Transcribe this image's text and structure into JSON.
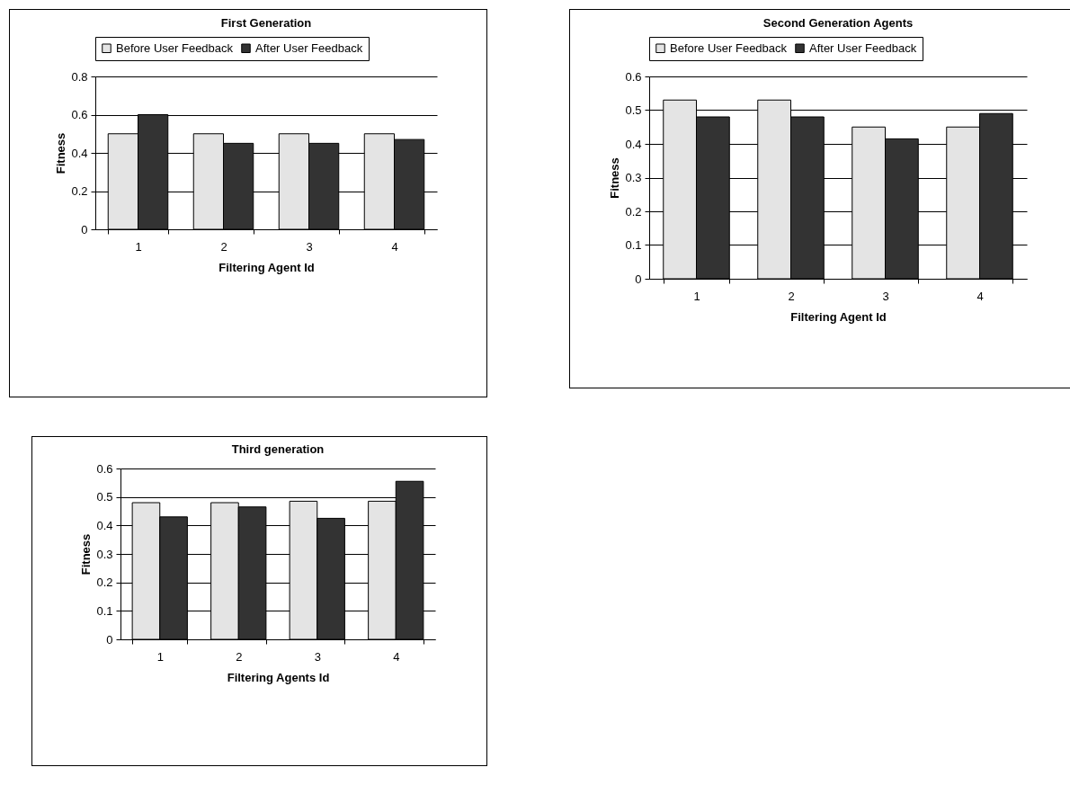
{
  "chart_data": [
    {
      "type": "bar",
      "title": "First Generation",
      "xlabel": "Filtering Agent Id",
      "ylabel": "Fitness",
      "categories": [
        "1",
        "2",
        "3",
        "4"
      ],
      "series": [
        {
          "name": "Before User Feedback",
          "color": "#e4e4e4",
          "values": [
            0.5,
            0.5,
            0.5,
            0.5
          ]
        },
        {
          "name": "After User Feedback",
          "color": "#333333",
          "values": [
            0.6,
            0.45,
            0.45,
            0.47
          ]
        }
      ],
      "ylim": [
        0,
        0.8
      ],
      "yticks": [
        0,
        0.2,
        0.4,
        0.6,
        0.8
      ],
      "grid": "y",
      "legend": "top"
    },
    {
      "type": "bar",
      "title": "Second Generation Agents",
      "xlabel": "Filtering Agent Id",
      "ylabel": "Fitness",
      "categories": [
        "1",
        "2",
        "3",
        "4"
      ],
      "series": [
        {
          "name": "Before User Feedback",
          "color": "#e4e4e4",
          "values": [
            0.53,
            0.53,
            0.45,
            0.45
          ]
        },
        {
          "name": "After User Feedback",
          "color": "#333333",
          "values": [
            0.48,
            0.48,
            0.415,
            0.49
          ]
        }
      ],
      "ylim": [
        0,
        0.6
      ],
      "yticks": [
        0,
        0.1,
        0.2,
        0.3,
        0.4,
        0.5,
        0.6
      ],
      "grid": "y",
      "legend": "top"
    },
    {
      "type": "bar",
      "title": "Third generation",
      "xlabel": "Filtering Agents Id",
      "ylabel": "Fitness",
      "categories": [
        "1",
        "2",
        "3",
        "4"
      ],
      "series": [
        {
          "color": "#e4e4e4",
          "values": [
            0.48,
            0.48,
            0.485,
            0.485
          ]
        },
        {
          "color": "#333333",
          "values": [
            0.43,
            0.465,
            0.425,
            0.555
          ]
        }
      ],
      "ylim": [
        0,
        0.6
      ],
      "yticks": [
        0,
        0.1,
        0.2,
        0.3,
        0.4,
        0.5,
        0.6
      ],
      "grid": "y"
    }
  ]
}
